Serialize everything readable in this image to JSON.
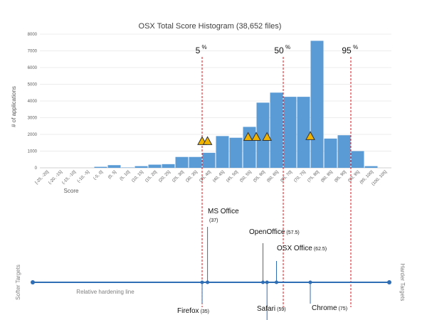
{
  "chart_data": {
    "type": "bar",
    "title": "OSX Total Score Histogram (38,652 files)",
    "xlabel": "Score",
    "ylabel": "# of applications",
    "ylim": [
      0,
      8000
    ],
    "yticks": [
      "0",
      "1000",
      "2000",
      "3000",
      "4000",
      "5000",
      "6000",
      "7000",
      "8000"
    ],
    "grid": true,
    "bar_color": "#5b9bd5",
    "categories": [
      "[-25, -20]",
      "(-20, -15]",
      "(-15, -10]",
      "(-10, -5]",
      "(-5, 0]",
      "(0, 5]",
      "(5, 10]",
      "(10, 15]",
      "(15, 20]",
      "(20, 25]",
      "(25, 30]",
      "(30, 35]",
      "(35, 40]",
      "(40, 45]",
      "(45, 50]",
      "(50, 55]",
      "(55, 60]",
      "(60, 65]",
      "(65, 70]",
      "(70, 75]",
      "(75, 80]",
      "(80, 85]",
      "(85, 90]",
      "(90, 95]",
      "(95, 100]",
      "(100, 105]"
    ],
    "values": [
      0,
      0,
      0,
      0,
      60,
      160,
      20,
      100,
      190,
      220,
      650,
      650,
      900,
      1900,
      1800,
      2450,
      3900,
      4500,
      4250,
      4250,
      7600,
      1750,
      1950,
      1000,
      100,
      0
    ],
    "percentiles": [
      {
        "label": "5",
        "sup": "%",
        "score": 35
      },
      {
        "label": "50",
        "sup": "%",
        "score": 65
      },
      {
        "label": "95",
        "sup": "%",
        "score": 90
      }
    ],
    "markers": [
      {
        "score": 35,
        "height": 1600
      },
      {
        "score": 37,
        "height": 1600
      },
      {
        "score": 52,
        "height": 1850
      },
      {
        "score": 55,
        "height": 1850
      },
      {
        "score": 59,
        "height": 1850
      },
      {
        "score": 75,
        "height": 1900
      }
    ],
    "marker_color": "#f0b400",
    "percentile_color": "#e0282e"
  },
  "hardening": {
    "line_label": "Relative hardening line",
    "left_label": "Softer Targets",
    "right_label": "Harder Targets",
    "line_color": "#2f6db5",
    "apps": [
      {
        "name": "Firefox",
        "score_text": "(35)",
        "score": 35,
        "side": "below",
        "stem": "short"
      },
      {
        "name": "MS Office",
        "score_text": "(37)",
        "score": 37,
        "side": "above",
        "stem": "tall"
      },
      {
        "name": "OpenOffice",
        "score_text": "(57.5)",
        "score": 57.5,
        "side": "above",
        "stem": "mid"
      },
      {
        "name": "Safari",
        "score_text": "(59)",
        "score": 59,
        "side": "below",
        "stem": "mid"
      },
      {
        "name": "OSX Office",
        "score_text": "(62.5)",
        "score": 62.5,
        "side": "above",
        "stem": "short"
      },
      {
        "name": "Chrome",
        "score_text": "(75)",
        "score": 75,
        "side": "below",
        "stem": "short"
      }
    ]
  }
}
